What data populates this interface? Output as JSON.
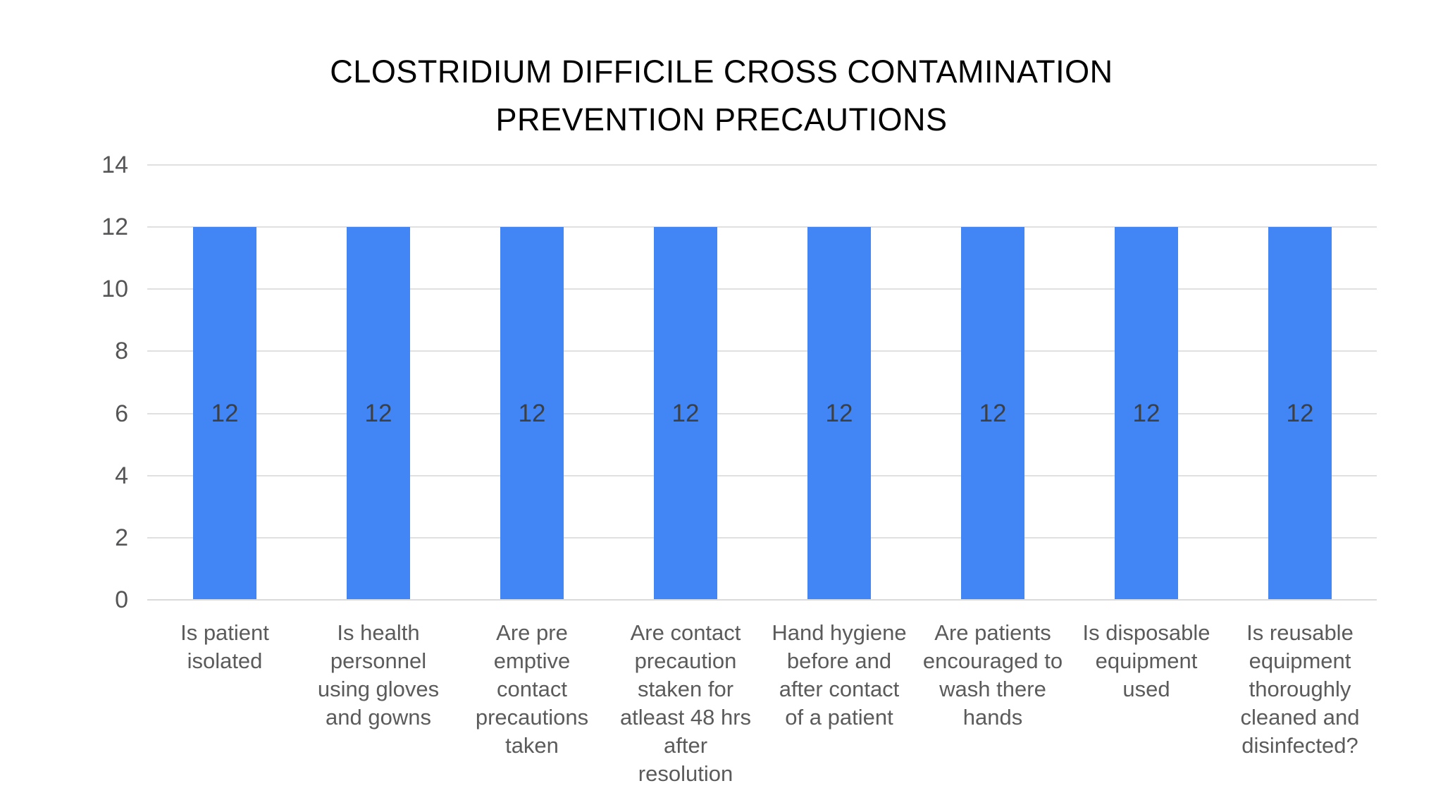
{
  "chart_data": {
    "type": "bar",
    "title": "CLOSTRIDIUM DIFFICILE CROSS CONTAMINATION\nPREVENTION PRECAUTIONS",
    "categories": [
      "Is patient isolated",
      "Is health personnel using gloves and gowns",
      "Are pre emptive contact precautions taken",
      "Are contact precaution staken for atleast 48 hrs after resolution",
      "Hand hygiene before and after contact of a patient",
      "Are patients encouraged to wash there hands",
      "Is disposable equipment used",
      "Is reusable equipment thoroughly cleaned and disinfected?"
    ],
    "values": [
      12,
      12,
      12,
      12,
      12,
      12,
      12,
      12
    ],
    "value_labels": [
      "12",
      "12",
      "12",
      "12",
      "12",
      "12",
      "12",
      "12"
    ],
    "xlabel": "",
    "ylabel": "",
    "ylim": [
      0,
      14
    ],
    "yticks": [
      0,
      2,
      4,
      6,
      8,
      10,
      12,
      14
    ],
    "ytick_labels_top_to_bottom": [
      "14",
      "12",
      "10",
      "8",
      "6",
      "4",
      "2",
      "0"
    ],
    "grid": true,
    "legend_position": "none",
    "colors": {
      "bar_fill": "#4285f4",
      "bar_value_label": "#3c4043",
      "axis_tick_label": "#555557",
      "category_label": "#5b5b5b",
      "gridline": "#e0e0e0",
      "title": "#000000",
      "background": "#ffffff"
    }
  },
  "category_labels_wrapped": [
    "Is patient\nisolated",
    "Is health\npersonnel\nusing gloves\nand gowns",
    "Are pre\nemptive\ncontact\nprecautions\ntaken",
    "Are contact\nprecaution\nstaken for\natleast 48 hrs\nafter\nresolution",
    "Hand hygiene\nbefore and\nafter contact\nof a patient",
    "Are patients\nencouraged to\nwash there\nhands",
    "Is disposable\nequipment\nused",
    "Is reusable\nequipment\nthoroughly\ncleaned and\ndisinfected?"
  ]
}
